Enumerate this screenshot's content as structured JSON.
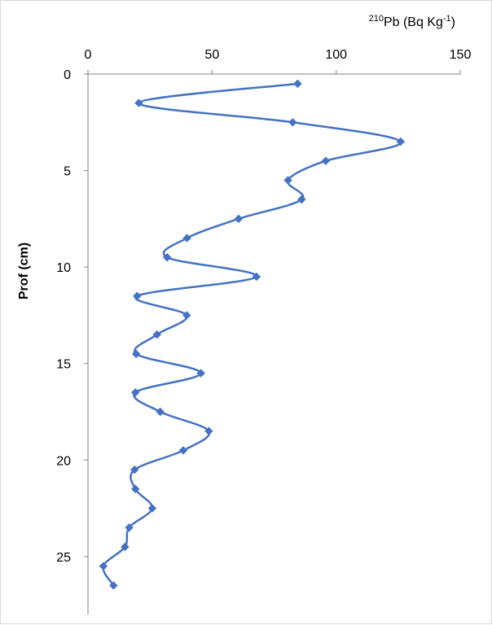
{
  "colors": {
    "series": "#4472c4",
    "axis": "#808080",
    "background": "#ffffff"
  },
  "chart_data": {
    "type": "line",
    "title": "",
    "xlabel": {
      "sup": "210",
      "main": "Pb (Bq Kg",
      "sup2": "-1",
      "close": ")"
    },
    "ylabel": "Prof (cm)",
    "xlim": [
      0,
      150
    ],
    "ylim": [
      0,
      28
    ],
    "y_inverted": true,
    "x_axis_position": "top",
    "x_ticks": [
      "0",
      "50",
      "100",
      "150"
    ],
    "y_ticks": [
      "0",
      "5",
      "10",
      "15",
      "20",
      "25"
    ],
    "grid": false,
    "legend": "none",
    "smooth": true,
    "marker": "diamond",
    "series": [
      {
        "x": [
          84.5,
          20.5,
          82.5,
          126.0,
          95.8,
          80.6,
          86.1,
          60.7,
          39.9,
          31.9,
          67.9,
          19.8,
          39.8,
          27.8,
          19.4,
          45.5,
          19.1,
          29.1,
          48.7,
          38.4,
          18.8,
          19.1,
          25.9,
          16.6,
          14.9,
          6.2,
          10.3
        ],
        "y": [
          0.5,
          1.5,
          2.5,
          3.5,
          4.5,
          5.5,
          6.5,
          7.5,
          8.5,
          9.5,
          10.5,
          11.5,
          12.5,
          13.5,
          14.5,
          15.5,
          16.5,
          17.5,
          18.5,
          19.5,
          20.5,
          21.5,
          22.5,
          23.5,
          24.5,
          25.5,
          26.5
        ]
      }
    ]
  }
}
